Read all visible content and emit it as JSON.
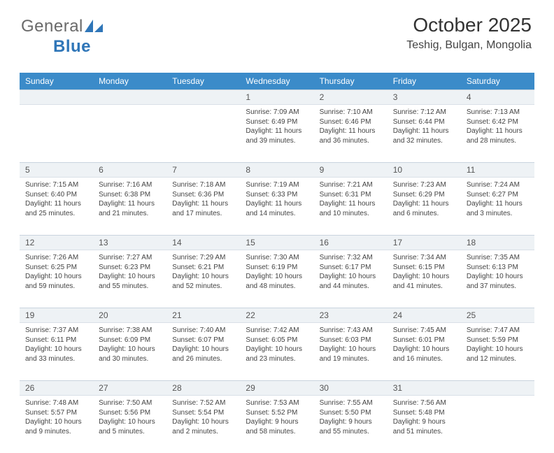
{
  "brand": {
    "part1": "General",
    "part2": "Blue"
  },
  "header": {
    "title": "October 2025",
    "location": "Teshig, Bulgan, Mongolia"
  },
  "colors": {
    "header_bar": "#3b8bc9",
    "daynum_bg": "#eef2f5",
    "daynum_border": "#c9d4de",
    "text": "#444444",
    "logo_blue": "#2f76b8"
  },
  "weekdays": [
    "Sunday",
    "Monday",
    "Tuesday",
    "Wednesday",
    "Thursday",
    "Friday",
    "Saturday"
  ],
  "weeks": [
    [
      null,
      null,
      null,
      {
        "n": "1",
        "sunrise": "7:09 AM",
        "sunset": "6:49 PM",
        "dh": "11",
        "dm": "39"
      },
      {
        "n": "2",
        "sunrise": "7:10 AM",
        "sunset": "6:46 PM",
        "dh": "11",
        "dm": "36"
      },
      {
        "n": "3",
        "sunrise": "7:12 AM",
        "sunset": "6:44 PM",
        "dh": "11",
        "dm": "32"
      },
      {
        "n": "4",
        "sunrise": "7:13 AM",
        "sunset": "6:42 PM",
        "dh": "11",
        "dm": "28"
      }
    ],
    [
      {
        "n": "5",
        "sunrise": "7:15 AM",
        "sunset": "6:40 PM",
        "dh": "11",
        "dm": "25"
      },
      {
        "n": "6",
        "sunrise": "7:16 AM",
        "sunset": "6:38 PM",
        "dh": "11",
        "dm": "21"
      },
      {
        "n": "7",
        "sunrise": "7:18 AM",
        "sunset": "6:36 PM",
        "dh": "11",
        "dm": "17"
      },
      {
        "n": "8",
        "sunrise": "7:19 AM",
        "sunset": "6:33 PM",
        "dh": "11",
        "dm": "14"
      },
      {
        "n": "9",
        "sunrise": "7:21 AM",
        "sunset": "6:31 PM",
        "dh": "11",
        "dm": "10"
      },
      {
        "n": "10",
        "sunrise": "7:23 AM",
        "sunset": "6:29 PM",
        "dh": "11",
        "dm": "6"
      },
      {
        "n": "11",
        "sunrise": "7:24 AM",
        "sunset": "6:27 PM",
        "dh": "11",
        "dm": "3"
      }
    ],
    [
      {
        "n": "12",
        "sunrise": "7:26 AM",
        "sunset": "6:25 PM",
        "dh": "10",
        "dm": "59"
      },
      {
        "n": "13",
        "sunrise": "7:27 AM",
        "sunset": "6:23 PM",
        "dh": "10",
        "dm": "55"
      },
      {
        "n": "14",
        "sunrise": "7:29 AM",
        "sunset": "6:21 PM",
        "dh": "10",
        "dm": "52"
      },
      {
        "n": "15",
        "sunrise": "7:30 AM",
        "sunset": "6:19 PM",
        "dh": "10",
        "dm": "48"
      },
      {
        "n": "16",
        "sunrise": "7:32 AM",
        "sunset": "6:17 PM",
        "dh": "10",
        "dm": "44"
      },
      {
        "n": "17",
        "sunrise": "7:34 AM",
        "sunset": "6:15 PM",
        "dh": "10",
        "dm": "41"
      },
      {
        "n": "18",
        "sunrise": "7:35 AM",
        "sunset": "6:13 PM",
        "dh": "10",
        "dm": "37"
      }
    ],
    [
      {
        "n": "19",
        "sunrise": "7:37 AM",
        "sunset": "6:11 PM",
        "dh": "10",
        "dm": "33"
      },
      {
        "n": "20",
        "sunrise": "7:38 AM",
        "sunset": "6:09 PM",
        "dh": "10",
        "dm": "30"
      },
      {
        "n": "21",
        "sunrise": "7:40 AM",
        "sunset": "6:07 PM",
        "dh": "10",
        "dm": "26"
      },
      {
        "n": "22",
        "sunrise": "7:42 AM",
        "sunset": "6:05 PM",
        "dh": "10",
        "dm": "23"
      },
      {
        "n": "23",
        "sunrise": "7:43 AM",
        "sunset": "6:03 PM",
        "dh": "10",
        "dm": "19"
      },
      {
        "n": "24",
        "sunrise": "7:45 AM",
        "sunset": "6:01 PM",
        "dh": "10",
        "dm": "16"
      },
      {
        "n": "25",
        "sunrise": "7:47 AM",
        "sunset": "5:59 PM",
        "dh": "10",
        "dm": "12"
      }
    ],
    [
      {
        "n": "26",
        "sunrise": "7:48 AM",
        "sunset": "5:57 PM",
        "dh": "10",
        "dm": "9"
      },
      {
        "n": "27",
        "sunrise": "7:50 AM",
        "sunset": "5:56 PM",
        "dh": "10",
        "dm": "5"
      },
      {
        "n": "28",
        "sunrise": "7:52 AM",
        "sunset": "5:54 PM",
        "dh": "10",
        "dm": "2"
      },
      {
        "n": "29",
        "sunrise": "7:53 AM",
        "sunset": "5:52 PM",
        "dh": "9",
        "dm": "58"
      },
      {
        "n": "30",
        "sunrise": "7:55 AM",
        "sunset": "5:50 PM",
        "dh": "9",
        "dm": "55"
      },
      {
        "n": "31",
        "sunrise": "7:56 AM",
        "sunset": "5:48 PM",
        "dh": "9",
        "dm": "51"
      },
      null
    ]
  ]
}
